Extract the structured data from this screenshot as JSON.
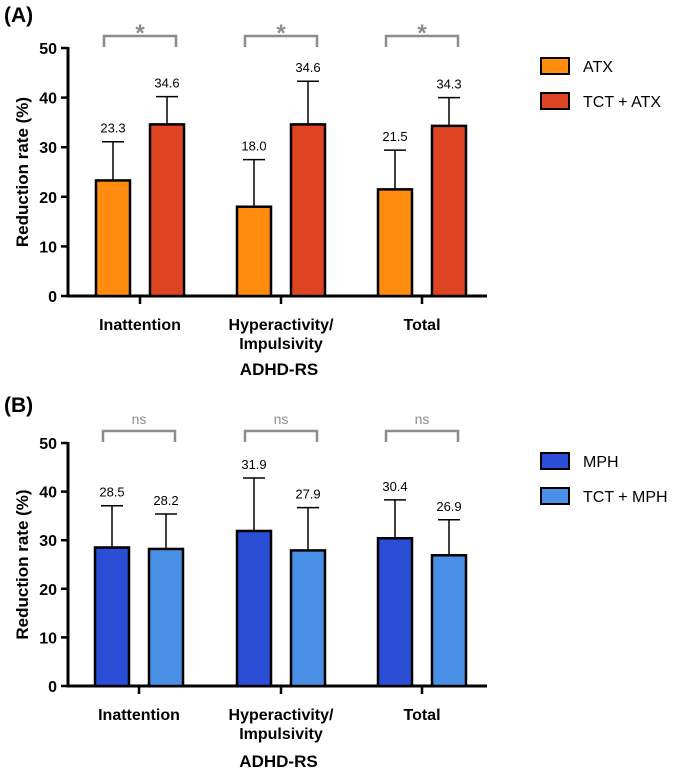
{
  "chart_data": [
    {
      "panel_label": "(A)",
      "type": "bar",
      "ylabel": "Reduction rate (%)",
      "xlabel": "ADHD-RS",
      "ylim": [
        0,
        50
      ],
      "yticks": [
        0,
        10,
        20,
        30,
        40,
        50
      ],
      "categories": [
        {
          "lines": [
            "Inattention"
          ]
        },
        {
          "lines": [
            "Hyperactivity/",
            "Impulsivity"
          ]
        },
        {
          "lines": [
            "Total"
          ]
        }
      ],
      "series": [
        {
          "name": "ATX",
          "color": "#ff8c0f",
          "values": [
            23.3,
            18.0,
            21.5
          ],
          "labels": [
            "23.3",
            "18.0",
            "21.5"
          ],
          "errors": [
            7.8,
            9.5,
            7.9
          ]
        },
        {
          "name": "TCT + ATX",
          "color": "#dd4422",
          "values": [
            34.6,
            34.6,
            34.3
          ],
          "labels": [
            "34.6",
            "34.6",
            "34.3"
          ],
          "errors": [
            5.6,
            8.7,
            5.7
          ]
        }
      ],
      "significance": [
        "*",
        "*",
        "*"
      ],
      "legend_position": "right"
    },
    {
      "panel_label": "(B)",
      "type": "bar",
      "ylabel": "Reduction rate (%)",
      "xlabel": "ADHD-RS",
      "ylim": [
        0,
        50
      ],
      "yticks": [
        0,
        10,
        20,
        30,
        40,
        50
      ],
      "categories": [
        {
          "lines": [
            "Inattention"
          ]
        },
        {
          "lines": [
            "Hyperactivity/",
            "Impulsivity"
          ]
        },
        {
          "lines": [
            "Total"
          ]
        }
      ],
      "series": [
        {
          "name": "MPH",
          "color": "#2a4fd6",
          "values": [
            28.5,
            31.9,
            30.4
          ],
          "labels": [
            "28.5",
            "31.9",
            "30.4"
          ],
          "errors": [
            8.6,
            10.9,
            7.9
          ]
        },
        {
          "name": "TCT + MPH",
          "color": "#4a8fe6",
          "values": [
            28.2,
            27.9,
            26.9
          ],
          "labels": [
            "28.2",
            "27.9",
            "26.9"
          ],
          "errors": [
            7.2,
            8.8,
            7.3
          ]
        }
      ],
      "significance": [
        "ns",
        "ns",
        "ns"
      ],
      "legend_position": "right"
    }
  ]
}
